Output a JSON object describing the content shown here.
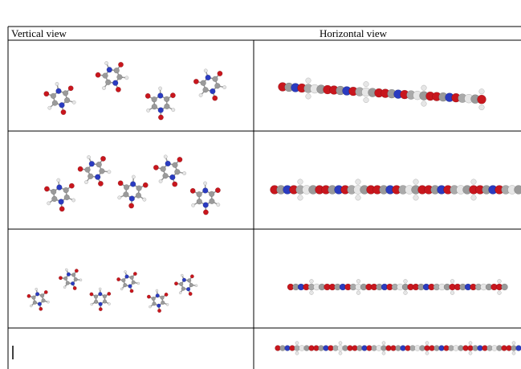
{
  "table": {
    "header": [
      "Vertical view",
      "Horizontal view"
    ]
  }
}
